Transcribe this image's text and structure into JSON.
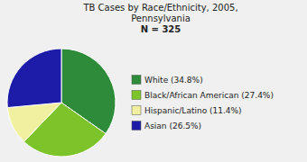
{
  "chart_data": {
    "type": "pie",
    "title": "TB Cases by Race/Ethnicity, 2005,\nPennsylvania",
    "subtitle": "N = 325",
    "categories": [
      "White (34.8%)",
      "Black/African American (27.4%)",
      "Hispanic/Latino (11.4%)",
      "Asian (26.5%)"
    ],
    "values": [
      34.8,
      27.4,
      11.4,
      26.5
    ],
    "colors": [
      "#2E8B3A",
      "#7DC42A",
      "#F0F0A0",
      "#1C1CA8"
    ],
    "legend": "right"
  }
}
